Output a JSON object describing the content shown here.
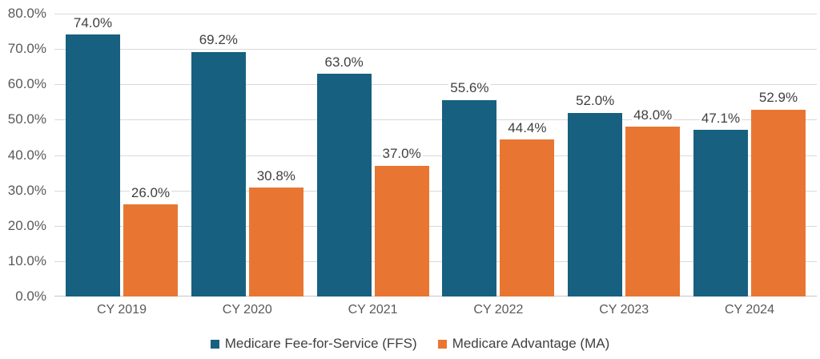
{
  "chart_data": {
    "type": "bar",
    "title": "",
    "categories": [
      "CY 2019",
      "CY 2020",
      "CY 2021",
      "CY 2022",
      "CY 2023",
      "CY 2024"
    ],
    "series": [
      {
        "name": "Medicare Fee-for-Service (FFS)",
        "color": "#186080",
        "values": [
          74.0,
          69.2,
          63.0,
          55.6,
          52.0,
          47.1
        ],
        "labels": [
          "74.0%",
          "69.2%",
          "63.0%",
          "55.6%",
          "52.0%",
          "47.1%"
        ]
      },
      {
        "name": "Medicare Advantage (MA)",
        "color": "#E87632",
        "values": [
          26.0,
          30.8,
          37.0,
          44.4,
          48.0,
          52.9
        ],
        "labels": [
          "26.0%",
          "30.8%",
          "37.0%",
          "44.4%",
          "48.0%",
          "52.9%"
        ]
      }
    ],
    "ylim": [
      0,
      80
    ],
    "y_tick_step": 10,
    "y_ticks": [
      "0.0%",
      "10.0%",
      "20.0%",
      "30.0%",
      "40.0%",
      "50.0%",
      "60.0%",
      "70.0%",
      "80.0%"
    ],
    "grid": true,
    "legend_position": "bottom"
  },
  "colors": {
    "gridline": "#D9D9D9",
    "axis_line": "#C6C6C6",
    "axis_text": "#595959",
    "data_label_text": "#404040",
    "background": "#FFFFFF"
  }
}
